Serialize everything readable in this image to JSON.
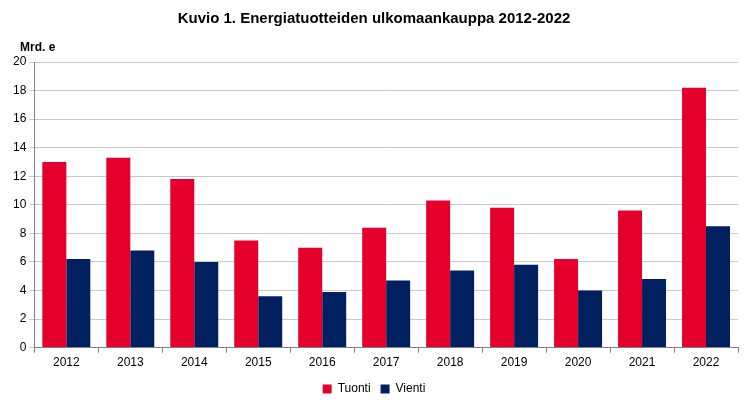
{
  "chart_data": {
    "type": "bar",
    "title": "Kuvio 1. Energiatuotteiden ulkomaankauppa 2012-2022",
    "y_label": "Mrd. e",
    "categories": [
      "2012",
      "2013",
      "2014",
      "2015",
      "2016",
      "2017",
      "2018",
      "2019",
      "2020",
      "2021",
      "2022"
    ],
    "series": [
      {
        "name": "Tuonti",
        "color": "#e4002b",
        "values": [
          13.0,
          13.3,
          11.8,
          7.5,
          7.0,
          8.4,
          10.3,
          9.8,
          6.2,
          9.6,
          18.2
        ]
      },
      {
        "name": "Vienti",
        "color": "#002060",
        "values": [
          6.2,
          6.8,
          6.0,
          3.6,
          3.9,
          4.7,
          5.4,
          5.8,
          4.0,
          4.8,
          8.5
        ]
      }
    ],
    "ylim": [
      0,
      20
    ],
    "yticks": [
      0,
      2,
      4,
      6,
      8,
      10,
      12,
      14,
      16,
      18,
      20
    ],
    "grid": true,
    "legend": "bottom"
  }
}
